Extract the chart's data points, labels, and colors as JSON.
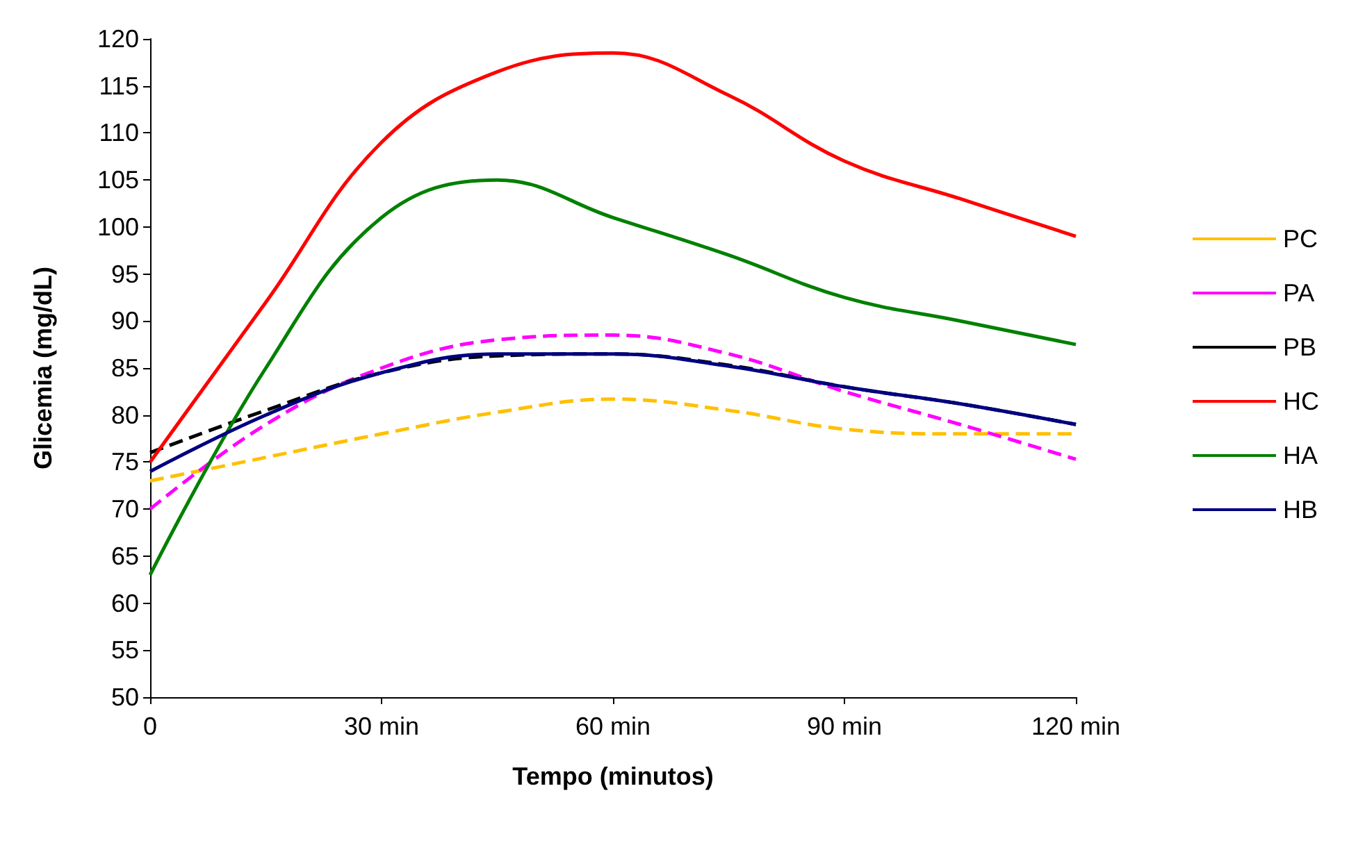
{
  "chart_data": {
    "type": "line",
    "xlabel": "Tempo (minutos)",
    "ylabel": "Glicemia (mg/dL)",
    "x": [
      0,
      15,
      30,
      45,
      60,
      75,
      90,
      105,
      120
    ],
    "xlim": [
      0,
      120
    ],
    "xticks": [
      0,
      {
        "value": 30,
        "label": "30 min"
      },
      {
        "value": 60,
        "label": "60 min"
      },
      {
        "value": 90,
        "label": "90 min"
      },
      {
        "value": 120,
        "label": "120 min"
      }
    ],
    "ylim": [
      50,
      120
    ],
    "yticks": [
      50,
      55,
      60,
      65,
      70,
      75,
      80,
      85,
      90,
      95,
      100,
      105,
      110,
      115,
      120
    ],
    "grid": false,
    "legend": "right",
    "marker": "none",
    "series": [
      {
        "name": "PC",
        "color": "#ffc000",
        "line_style": "dashed",
        "values": [
          73,
          75.5,
          78,
          80.3,
          81.7,
          80.5,
          78.5,
          78,
          78
        ]
      },
      {
        "name": "PA",
        "color": "#ff00ff",
        "line_style": "dashed",
        "values": [
          70,
          79,
          85,
          88,
          88.5,
          86.5,
          82.5,
          79,
          75.3
        ]
      },
      {
        "name": "PB",
        "color": "#000000",
        "line_style": "dashed",
        "values": [
          76,
          80.5,
          84.5,
          86.3,
          86.5,
          85.3,
          83,
          81.2,
          79
        ]
      },
      {
        "name": "HC",
        "color": "#ff0000",
        "line_style": "solid",
        "values": [
          75,
          92,
          109,
          116.5,
          118.5,
          114,
          107,
          103,
          99
        ]
      },
      {
        "name": "HA",
        "color": "#008000",
        "line_style": "solid",
        "values": [
          63,
          85,
          101,
          105,
          101,
          97,
          92.5,
          90,
          87.5
        ]
      },
      {
        "name": "HB",
        "color": "#000080",
        "line_style": "solid",
        "values": [
          74,
          80,
          84.5,
          86.5,
          86.5,
          85.2,
          83,
          81.2,
          79
        ]
      }
    ]
  }
}
